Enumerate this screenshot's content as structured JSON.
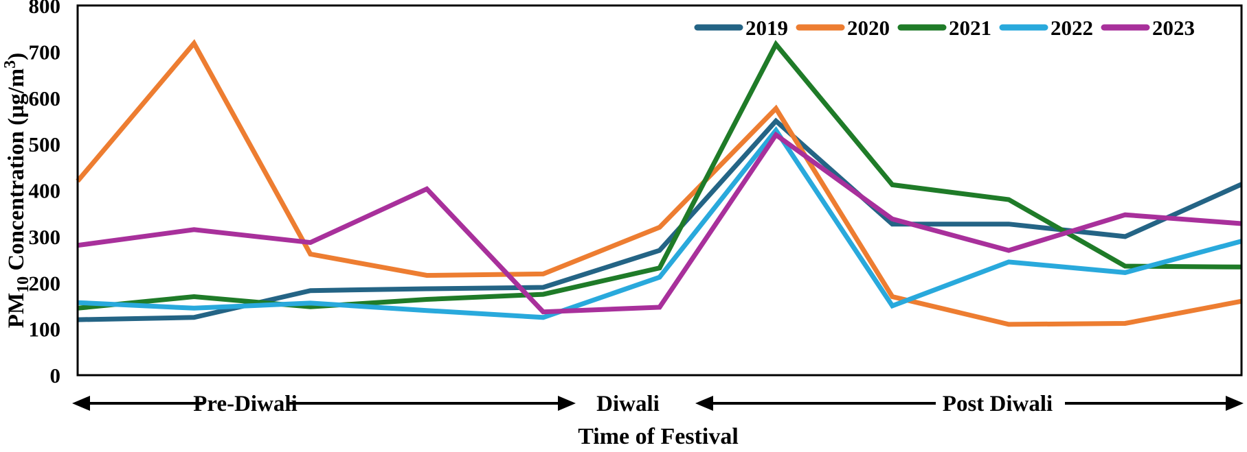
{
  "figure": {
    "aria_label": "Line chart of PM10 concentration during Diwali festival periods for years 2019 to 2023"
  },
  "chart_data": {
    "type": "line",
    "title": "",
    "xlabel": "Time of Festival",
    "ylabel": "PM₁₀ Concentration (µg/m³)",
    "ylabel_parts": {
      "base": "PM",
      "subscript": "10",
      "middle": " Concentration (µg/m",
      "superscript": "3",
      "end": ")"
    },
    "ylim": [
      0,
      800
    ],
    "yticks": [
      0,
      100,
      200,
      300,
      400,
      500,
      600,
      700,
      800
    ],
    "x_tick_labels": [],
    "n_points": 11,
    "grid": false,
    "legend_position": "top-inside",
    "series": [
      {
        "name": "2019",
        "color": "#246485",
        "values": [
          120,
          125,
          183,
          187,
          190,
          270,
          550,
          327,
          327,
          300,
          413
        ]
      },
      {
        "name": "2020",
        "color": "#ED7D31",
        "values": [
          420,
          718,
          262,
          216,
          219,
          320,
          577,
          170,
          110,
          112,
          160
        ]
      },
      {
        "name": "2021",
        "color": "#1F7B28",
        "values": [
          145,
          170,
          148,
          164,
          175,
          232,
          716,
          412,
          380,
          236,
          234
        ]
      },
      {
        "name": "2022",
        "color": "#29A9DC",
        "values": [
          157,
          145,
          156,
          140,
          125,
          212,
          530,
          150,
          245,
          222,
          290
        ]
      },
      {
        "name": "2023",
        "color": "#A8309B",
        "values": [
          281,
          315,
          287,
          403,
          137,
          147,
          520,
          338,
          270,
          347,
          328
        ]
      }
    ],
    "annotations": {
      "pre_diwali": "Pre-Diwali",
      "diwali": "Diwali",
      "post_diwali": "Post Diwali"
    }
  }
}
